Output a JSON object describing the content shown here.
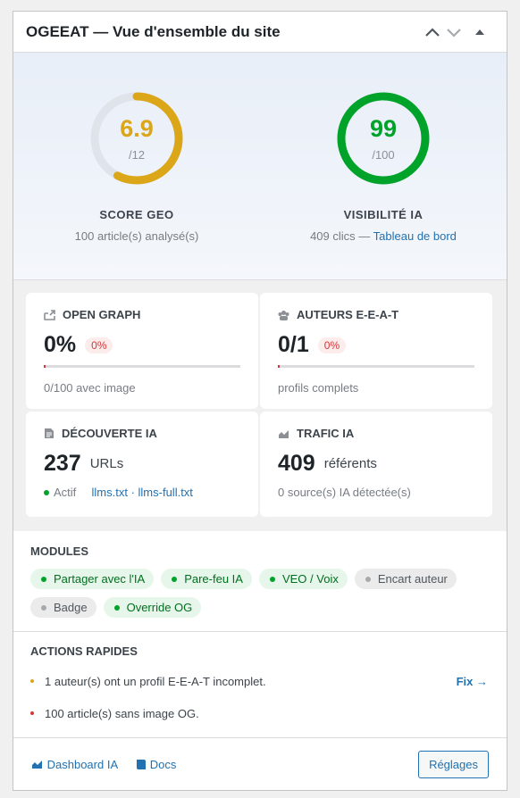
{
  "header": {
    "title": "OGEEAT — Vue d'ensemble du site"
  },
  "scores": [
    {
      "value": 6.9,
      "max": {
        "value": 12,
        "label": "/12"
      },
      "color": "#dba617",
      "label": "SCORE GEO",
      "note": "100 article(s) analysé(s)"
    },
    {
      "value": 99,
      "max": {
        "value": 100,
        "label": "/100"
      },
      "color": "#00a32a",
      "label": "VISIBILITÉ IA",
      "note": "409 clics —",
      "link": "Tableau de bord"
    }
  ],
  "cards": [
    {
      "title": "OPEN GRAPH",
      "value": "0%",
      "percent": {
        "value": 0,
        "label": "0%"
      },
      "note": "0/100 avec image"
    },
    {
      "title": "AUTEURS E-E-A-T",
      "value": "0/1",
      "percent": {
        "value": 0,
        "label": "0%"
      },
      "note": "profils complets"
    },
    {
      "title": "DÉCOUVERTE IA",
      "value": 237,
      "unit": "URLs",
      "status": "Actif",
      "links": "llms.txt · llms-full.txt"
    },
    {
      "title": "TRAFIC IA",
      "value": 409,
      "unit": "référents",
      "note": "0 source(s) IA détectée(s)"
    }
  ],
  "modules": {
    "title": "MODULES",
    "items": [
      {
        "name": "Partager avec l'IA",
        "active": true
      },
      {
        "name": "Pare-feu IA",
        "active": true
      },
      {
        "name": "VEO / Voix",
        "active": true
      },
      {
        "name": "Encart auteur",
        "active": false
      },
      {
        "name": "Badge",
        "active": false
      },
      {
        "name": "Override OG",
        "active": true
      }
    ]
  },
  "actions": {
    "title": "ACTIONS RAPIDES",
    "items": [
      {
        "text": "1 auteur(s) ont un profil E-E-A-T incomplet.",
        "color": "#dba617",
        "action": "Fix →"
      },
      {
        "text": "100 article(s) sans image OG.",
        "color": "#d63638"
      }
    ]
  },
  "footer": {
    "links": [
      "Dashboard IA",
      "Docs"
    ],
    "button": "Réglages"
  }
}
